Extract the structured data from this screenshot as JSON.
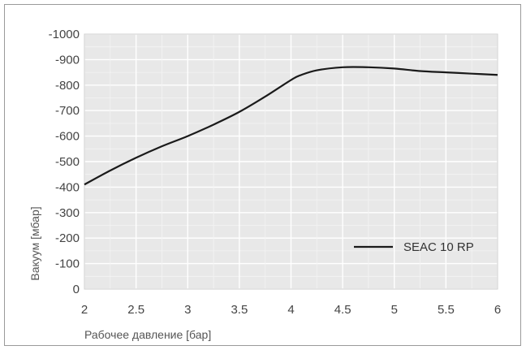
{
  "chart_data": {
    "type": "line",
    "title": "",
    "xlabel": "Рабочее давление [бар]",
    "ylabel": "Вакуум [мбар]",
    "xlim": [
      2,
      6
    ],
    "ylim": [
      0,
      -1000
    ],
    "x_ticks": [
      "2",
      "2.5",
      "3",
      "3.5",
      "4",
      "4.5",
      "5",
      "5.5",
      "6"
    ],
    "y_ticks": [
      "-1000",
      "-900",
      "-800",
      "-700",
      "-600",
      "-500",
      "-400",
      "-300",
      "-200",
      "-100",
      "0"
    ],
    "grid": true,
    "legend_position": "bottom-right",
    "background_color": "#e8e8e8",
    "line_color": "#1a1a1a",
    "series": [
      {
        "name": "SEAC 10 RP",
        "x": [
          2,
          2.25,
          2.5,
          2.75,
          3,
          3.25,
          3.5,
          3.75,
          4,
          4.1,
          4.25,
          4.5,
          4.75,
          5,
          5.25,
          5.5,
          5.75,
          6
        ],
        "y": [
          -410,
          -465,
          -515,
          -560,
          -600,
          -645,
          -695,
          -755,
          -820,
          -840,
          -858,
          -870,
          -870,
          -865,
          -855,
          -850,
          -845,
          -840
        ]
      }
    ]
  }
}
